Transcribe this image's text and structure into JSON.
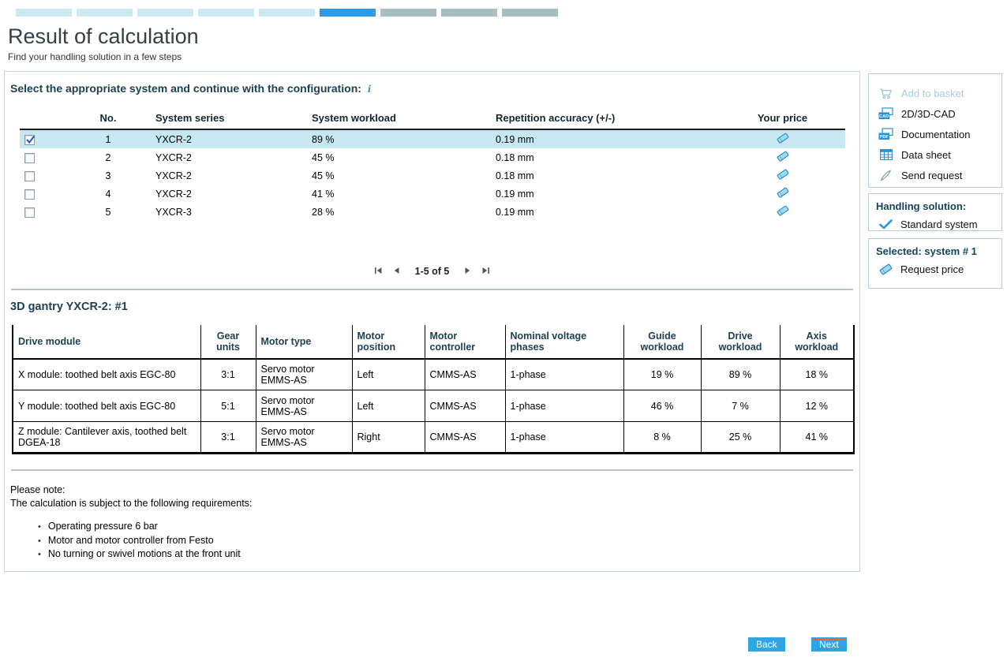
{
  "colors": {
    "accent": "#2e9be6",
    "progress_done": "#cfe9f3",
    "progress_active": "#2e9be6",
    "progress_todo": "#a9bec0",
    "row_selected": "#c7e8f3"
  },
  "progress": {
    "segments": [
      "done",
      "done",
      "done",
      "done",
      "done",
      "active",
      "todo",
      "todo",
      "todo"
    ]
  },
  "header": {
    "title": "Result of calculation",
    "subtitle": "Find your handling solution in a few steps"
  },
  "selection": {
    "prompt": "Select the appropriate system and continue with the configuration:",
    "info_icon": "i",
    "columns": [
      "No.",
      "System series",
      "System workload",
      "Repetition accuracy (+/-)",
      "Your price"
    ],
    "rows": [
      {
        "no": "1",
        "series": "YXCR-2",
        "workload": "89 %",
        "accuracy": "0.19 mm",
        "checked": true
      },
      {
        "no": "2",
        "series": "YXCR-2",
        "workload": "45 %",
        "accuracy": "0.18 mm",
        "checked": false
      },
      {
        "no": "3",
        "series": "YXCR-2",
        "workload": "45 %",
        "accuracy": "0.18 mm",
        "checked": false
      },
      {
        "no": "4",
        "series": "YXCR-2",
        "workload": "41 %",
        "accuracy": "0.19 mm",
        "checked": false
      },
      {
        "no": "5",
        "series": "YXCR-3",
        "workload": "28 %",
        "accuracy": "0.19 mm",
        "checked": false
      }
    ],
    "pagination": "1-5 of 5"
  },
  "detail": {
    "title": "3D gantry YXCR-2: #1",
    "columns": [
      "Drive module",
      "Gear units",
      "Motor type",
      "Motor position",
      "Motor controller",
      "Nominal voltage phases",
      "Guide workload",
      "Drive workload",
      "Axis workload"
    ],
    "rows": [
      [
        "X module: toothed belt axis EGC-80",
        "3:1",
        "Servo motor EMMS-AS",
        "Left",
        "CMMS-AS",
        "1-phase",
        "19 %",
        "89 %",
        "18 %"
      ],
      [
        "Y module: toothed belt axis EGC-80",
        "5:1",
        "Servo motor EMMS-AS",
        "Left",
        "CMMS-AS",
        "1-phase",
        "46 %",
        "7 %",
        "12 %"
      ],
      [
        "Z module: Cantilever axis, toothed belt DGEA-18",
        "3:1",
        "Servo motor EMMS-AS",
        "Right",
        "CMMS-AS",
        "1-phase",
        "8 %",
        "25 %",
        "41 %"
      ]
    ]
  },
  "notes": {
    "line1": "Please note:",
    "line2": "The calculation is subject to the following requirements:",
    "bullets": [
      "Operating pressure 6 bar",
      "Motor and motor controller from Festo",
      "No turning or swivel motions at the front unit"
    ]
  },
  "sidebar": {
    "actions": [
      {
        "label": "Add to basket",
        "icon": "basket-icon",
        "disabled": true
      },
      {
        "label": "2D/3D-CAD",
        "icon": "cad-icon",
        "disabled": false
      },
      {
        "label": "Documentation",
        "icon": "pdf-icon",
        "disabled": false
      },
      {
        "label": "Data sheet",
        "icon": "datasheet-icon",
        "disabled": false
      },
      {
        "label": "Send request",
        "icon": "pen-icon",
        "disabled": false
      }
    ],
    "handling": {
      "heading": "Handling solution:",
      "item": "Standard system",
      "icon": "check-icon"
    },
    "selected": {
      "heading": "Selected: system # 1",
      "item": "Request price",
      "icon": "pricetag-icon"
    }
  },
  "footer": {
    "back_label": "Back",
    "next_label": "Next"
  }
}
